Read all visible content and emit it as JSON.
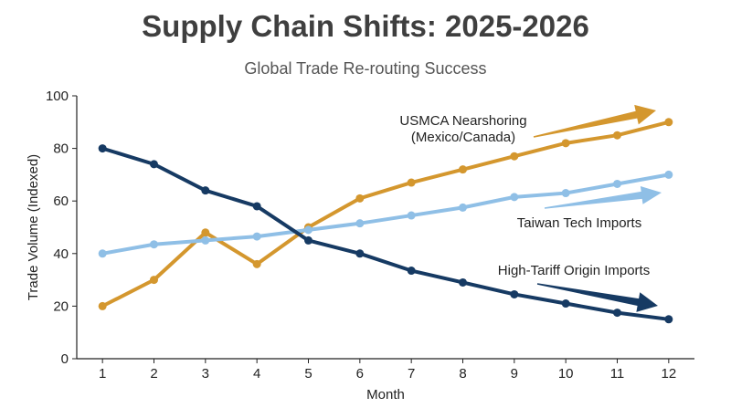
{
  "title": "Supply Chain Shifts: 2025-2026",
  "subtitle": "Global Trade Re-routing Success",
  "chart_data": {
    "type": "line",
    "title": "Supply Chain Shifts: 2025-2026",
    "subtitle": "Global Trade Re-routing Success",
    "xlabel": "Month",
    "ylabel": "Trade Volume (Indexed)",
    "x": [
      1,
      2,
      3,
      4,
      5,
      6,
      7,
      8,
      9,
      10,
      11,
      12
    ],
    "xlim": [
      0.5,
      12.5
    ],
    "ylim": [
      0,
      100
    ],
    "yticks": [
      0,
      20,
      40,
      60,
      80,
      100
    ],
    "grid": false,
    "legend": "none",
    "series": [
      {
        "name": "USMCA Nearshoring (Mexico/Canada)",
        "color": "#d4972e",
        "values": [
          20,
          30,
          48,
          36,
          50,
          61,
          67,
          72,
          77,
          82,
          85,
          90
        ]
      },
      {
        "name": "Taiwan Tech Imports",
        "color": "#8fbfe6",
        "values": [
          40,
          43.5,
          45,
          46.5,
          49,
          51.5,
          54.5,
          57.5,
          61.5,
          63,
          66.5,
          70
        ]
      },
      {
        "name": "High-Tariff Origin Imports",
        "color": "#163a63",
        "values": [
          80,
          74,
          64,
          58,
          45,
          40,
          33.5,
          29,
          24.5,
          21,
          17.5,
          15
        ]
      }
    ],
    "annotations": [
      {
        "lines": [
          "USMCA Nearshoring",
          "(Mexico/Canada)"
        ],
        "series": 0
      },
      {
        "lines": [
          "Taiwan Tech Imports"
        ],
        "series": 1
      },
      {
        "lines": [
          "High-Tariff Origin Imports"
        ],
        "series": 2
      }
    ]
  }
}
